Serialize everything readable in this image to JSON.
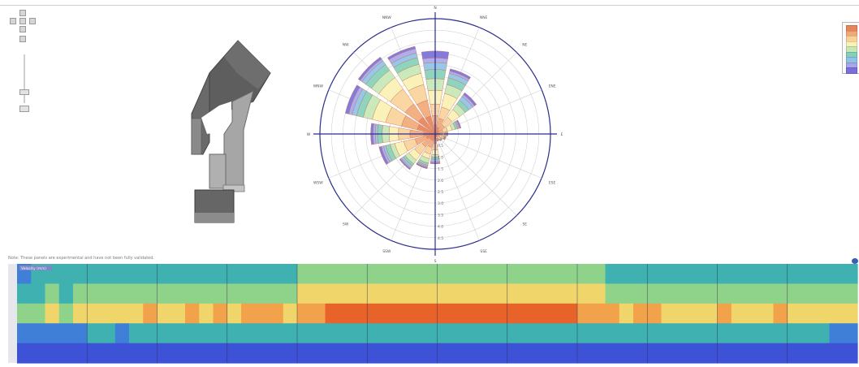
{
  "note": "Note: These panels are experimental and have not been fully validated.",
  "heatmap_label": "Velocity (m/s)",
  "legend": {
    "colors": [
      "#e8835a",
      "#f2a978",
      "#f9d29a",
      "#fbf1b4",
      "#c7e8b5",
      "#84d0b8",
      "#8ec3e6",
      "#a9a6ea",
      "#7b6fdb"
    ]
  },
  "compass": [
    "N",
    "NNE",
    "NE",
    "ENE",
    "E",
    "ESE",
    "SE",
    "SSE",
    "S",
    "SSW",
    "SW",
    "WSW",
    "W",
    "WNW",
    "NW",
    "NNW"
  ],
  "polar_ticks": [
    "0.5",
    "1.0",
    "1.5",
    "2.0",
    "2.5",
    "3.0",
    "3.5",
    "4.0",
    "4.5"
  ],
  "chart_data": [
    {
      "type": "windrose",
      "directions": [
        "N",
        "NNE",
        "NE",
        "ENE",
        "E",
        "ESE",
        "SE",
        "SSE",
        "S",
        "SSW",
        "SW",
        "WSW",
        "W",
        "WNW",
        "NW",
        "NNW"
      ],
      "radial_range": [
        0,
        5
      ],
      "bins": 9,
      "series": [
        {
          "direction": "N",
          "values": [
            0.4,
            0.8,
            1.3,
            1.9,
            2.4,
            2.8,
            3.1,
            3.3,
            3.6
          ]
        },
        {
          "direction": "NNE",
          "values": [
            0.3,
            0.7,
            1.2,
            1.8,
            2.2,
            2.5,
            2.7,
            2.8,
            2.9
          ]
        },
        {
          "direction": "NE",
          "values": [
            0.2,
            0.5,
            0.9,
            1.3,
            1.6,
            1.8,
            2.0,
            2.1,
            2.2
          ]
        },
        {
          "direction": "ENE",
          "values": [
            0.15,
            0.35,
            0.55,
            0.75,
            0.9,
            1.0,
            1.05,
            1.1,
            1.15
          ]
        },
        {
          "direction": "E",
          "values": [
            0.1,
            0.2,
            0.3,
            0.4,
            0.45,
            0.5,
            0.52,
            0.54,
            0.55
          ]
        },
        {
          "direction": "ESE",
          "values": [
            0.1,
            0.2,
            0.3,
            0.35,
            0.4,
            0.42,
            0.44,
            0.46,
            0.48
          ]
        },
        {
          "direction": "SE",
          "values": [
            0.1,
            0.15,
            0.2,
            0.25,
            0.3,
            0.32,
            0.34,
            0.36,
            0.38
          ]
        },
        {
          "direction": "SSE",
          "values": [
            0.1,
            0.15,
            0.2,
            0.22,
            0.25,
            0.27,
            0.29,
            0.3,
            0.32
          ]
        },
        {
          "direction": "S",
          "values": [
            0.2,
            0.4,
            0.7,
            0.9,
            1.0,
            1.1,
            1.2,
            1.25,
            1.3
          ]
        },
        {
          "direction": "SSW",
          "values": [
            0.3,
            0.6,
            0.9,
            1.1,
            1.3,
            1.4,
            1.45,
            1.5,
            1.55
          ]
        },
        {
          "direction": "SW",
          "values": [
            0.3,
            0.7,
            1.1,
            1.4,
            1.6,
            1.7,
            1.8,
            1.85,
            1.9
          ]
        },
        {
          "direction": "WSW",
          "values": [
            0.4,
            0.9,
            1.4,
            1.8,
            2.0,
            2.2,
            2.3,
            2.4,
            2.5
          ]
        },
        {
          "direction": "W",
          "values": [
            0.5,
            1.1,
            1.6,
            2.0,
            2.3,
            2.5,
            2.6,
            2.7,
            2.8
          ]
        },
        {
          "direction": "WNW",
          "values": [
            0.8,
            1.5,
            2.2,
            2.8,
            3.2,
            3.5,
            3.7,
            3.85,
            4.0
          ]
        },
        {
          "direction": "NW",
          "values": [
            0.9,
            1.6,
            2.4,
            3.0,
            3.4,
            3.7,
            3.9,
            4.0,
            4.1
          ]
        },
        {
          "direction": "NNW",
          "values": [
            0.8,
            1.5,
            2.2,
            2.7,
            3.1,
            3.4,
            3.6,
            3.8,
            3.9
          ]
        }
      ]
    },
    {
      "type": "heatmap",
      "columns": 60,
      "rows": 5,
      "core_value_by_column": [
        0.5,
        0.55,
        0.6,
        0.55,
        0.62,
        0.7,
        0.65,
        0.6,
        0.68,
        0.72,
        0.65,
        0.7,
        0.75,
        0.7,
        0.72,
        0.68,
        0.74,
        0.76,
        0.72,
        0.7,
        0.78,
        0.82,
        0.86,
        0.88,
        0.9,
        0.92,
        0.93,
        0.94,
        0.92,
        0.93,
        0.94,
        0.92,
        0.93,
        0.92,
        0.9,
        0.92,
        0.93,
        0.9,
        0.88,
        0.86,
        0.84,
        0.8,
        0.76,
        0.7,
        0.72,
        0.74,
        0.7,
        0.68,
        0.66,
        0.7,
        0.72,
        0.68,
        0.66,
        0.7,
        0.74,
        0.7,
        0.66,
        0.64,
        0.6,
        0.58
      ]
    }
  ]
}
